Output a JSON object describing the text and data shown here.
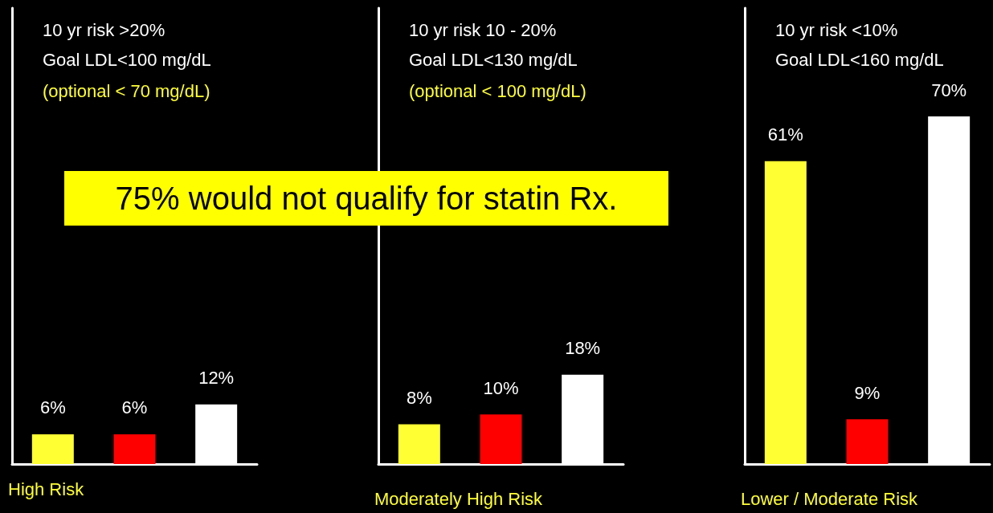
{
  "chart_data": [
    {
      "type": "bar",
      "title": "10 yr risk >20%\nGoal LDL<100 mg/dL",
      "subtitle": "(optional < 70 mg/dL)",
      "xlabel": "High Risk",
      "categories": [
        null,
        null,
        null
      ],
      "values": [
        6,
        6,
        12
      ],
      "value_labels": [
        "6%",
        "6%",
        "12%"
      ],
      "colors": [
        "#ffff33",
        "#ff0000",
        "#ffffff"
      ],
      "grid": false,
      "annotations": [
        "75% would not qualify for statin Rx."
      ]
    },
    {
      "type": "bar",
      "title": "10 yr risk 10 - 20%\nGoal LDL<130 mg/dL",
      "subtitle": "(optional < 100 mg/dL)",
      "xlabel": "Moderately High Risk",
      "categories": [
        null,
        null,
        null
      ],
      "values": [
        8,
        10,
        18
      ],
      "value_labels": [
        "8%",
        "10%",
        "18%"
      ],
      "colors": [
        "#ffff33",
        "#ff0000",
        "#ffffff"
      ],
      "grid": false
    },
    {
      "type": "bar",
      "title": "10 yr risk <10%\nGoal LDL<160 mg/dL",
      "xlabel": "Lower / Moderate Risk",
      "categories": [
        null,
        null,
        null
      ],
      "values": [
        61,
        9,
        70
      ],
      "value_labels": [
        "61%",
        "9%",
        "70%"
      ],
      "colors": [
        "#ffff33",
        "#ff0000",
        "#ffffff"
      ],
      "grid": false
    }
  ]
}
